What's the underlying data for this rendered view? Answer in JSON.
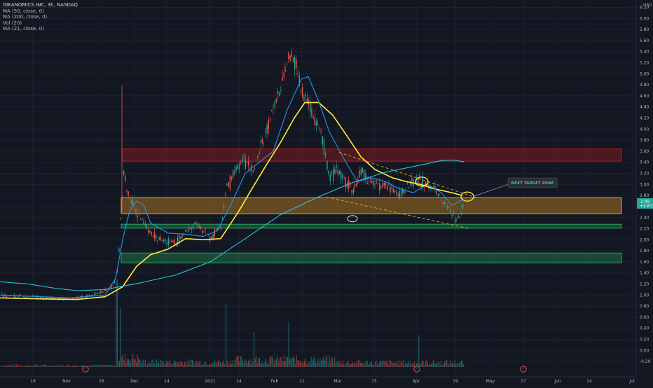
{
  "legend": {
    "title": "IDEANOMICS INC, 3h, NASDAQ",
    "ma50": "MA (50, close, 0)",
    "ma200": "MA (200, close, 0)",
    "vol": "Vol (20)",
    "ma21": "MA (21, close, 0)"
  },
  "currency": "USD",
  "annotation": "NEXT TARGET ZONE",
  "price_labels": {
    "current": "2.69",
    "change": "+2.67"
  },
  "chart_data": {
    "type": "candlestick",
    "xlabel": "",
    "ylabel": "USD",
    "ylim": [
      -0.3,
      6.2
    ],
    "y_ticks": [
      "6.20",
      "6.00",
      "5.80",
      "5.60",
      "5.40",
      "5.20",
      "5.00",
      "4.80",
      "4.60",
      "4.40",
      "4.20",
      "4.00",
      "3.80",
      "3.60",
      "3.40",
      "3.20",
      "3.00",
      "2.80",
      "2.60",
      "2.40",
      "2.20",
      "2.00",
      "1.80",
      "1.60",
      "1.40",
      "1.20",
      "1.00",
      "0.80",
      "0.60",
      "0.40",
      "0.20",
      "0.00",
      "-0.20"
    ],
    "x_ticks": [
      "19",
      "Nov",
      "16",
      "Dec",
      "14",
      "2021",
      "14",
      "Feb",
      "11",
      "Mar",
      "15",
      "Apr",
      "19",
      "May",
      "17",
      "Jun",
      "14",
      "Jul"
    ],
    "series": [
      {
        "name": "MA (50, close, 0)",
        "color": "#ffeb3b",
        "points": [
          [
            0,
            0.95
          ],
          [
            60,
            0.93
          ],
          [
            110,
            0.92
          ],
          [
            150,
            0.97
          ],
          [
            175,
            1.15
          ],
          [
            195,
            1.52
          ],
          [
            215,
            1.73
          ],
          [
            240,
            1.83
          ],
          [
            265,
            2.02
          ],
          [
            290,
            2.0
          ],
          [
            315,
            2.02
          ],
          [
            340,
            2.5
          ],
          [
            360,
            2.93
          ],
          [
            380,
            3.35
          ],
          [
            400,
            3.75
          ],
          [
            420,
            4.2
          ],
          [
            435,
            4.48
          ],
          [
            455,
            4.48
          ],
          [
            475,
            4.25
          ],
          [
            495,
            3.88
          ],
          [
            515,
            3.5
          ],
          [
            535,
            3.27
          ],
          [
            560,
            3.12
          ],
          [
            580,
            3.05
          ],
          [
            600,
            3.0
          ],
          [
            620,
            2.92
          ],
          [
            645,
            2.85
          ],
          [
            660,
            2.8
          ]
        ]
      },
      {
        "name": "MA (200, close, 0)",
        "color": "#26c6da",
        "points": [
          [
            0,
            1.24
          ],
          [
            40,
            1.2
          ],
          [
            80,
            1.12
          ],
          [
            110,
            1.08
          ],
          [
            150,
            1.1
          ],
          [
            200,
            1.22
          ],
          [
            250,
            1.36
          ],
          [
            300,
            1.6
          ],
          [
            350,
            2.02
          ],
          [
            400,
            2.45
          ],
          [
            450,
            2.75
          ],
          [
            500,
            3.02
          ],
          [
            550,
            3.22
          ],
          [
            600,
            3.35
          ],
          [
            630,
            3.43
          ],
          [
            645,
            3.44
          ],
          [
            662,
            3.41
          ]
        ]
      },
      {
        "name": "MA (21, close, 0)",
        "color": "#2196f3",
        "points": [
          [
            0,
            1.0
          ],
          [
            100,
            0.95
          ],
          [
            150,
            1.0
          ],
          [
            165,
            1.3
          ],
          [
            175,
            2.0
          ],
          [
            185,
            2.52
          ],
          [
            195,
            2.7
          ],
          [
            205,
            2.62
          ],
          [
            215,
            2.3
          ],
          [
            240,
            2.12
          ],
          [
            265,
            2.1
          ],
          [
            290,
            2.06
          ],
          [
            310,
            2.16
          ],
          [
            330,
            2.65
          ],
          [
            350,
            3.2
          ],
          [
            370,
            3.4
          ],
          [
            390,
            3.6
          ],
          [
            410,
            4.35
          ],
          [
            430,
            4.9
          ],
          [
            440,
            4.95
          ],
          [
            455,
            4.5
          ],
          [
            470,
            3.95
          ],
          [
            490,
            3.48
          ],
          [
            510,
            3.05
          ],
          [
            530,
            3.12
          ],
          [
            550,
            3.05
          ],
          [
            570,
            2.92
          ],
          [
            590,
            2.85
          ],
          [
            610,
            3.0
          ],
          [
            630,
            2.85
          ],
          [
            645,
            2.62
          ],
          [
            660,
            2.72
          ]
        ]
      }
    ],
    "zones": [
      {
        "name": "resistance-zone",
        "color": "#b71c1c",
        "y": [
          3.42,
          3.64
        ]
      },
      {
        "name": "current-range-zone",
        "color": "#f5a623",
        "y": [
          2.47,
          2.76
        ]
      },
      {
        "name": "support-zone",
        "color": "#26a65b",
        "y": [
          2.21,
          2.28
        ]
      },
      {
        "name": "lower-support-zone",
        "color": "#26a65b",
        "y": [
          1.58,
          1.76
        ]
      }
    ]
  }
}
